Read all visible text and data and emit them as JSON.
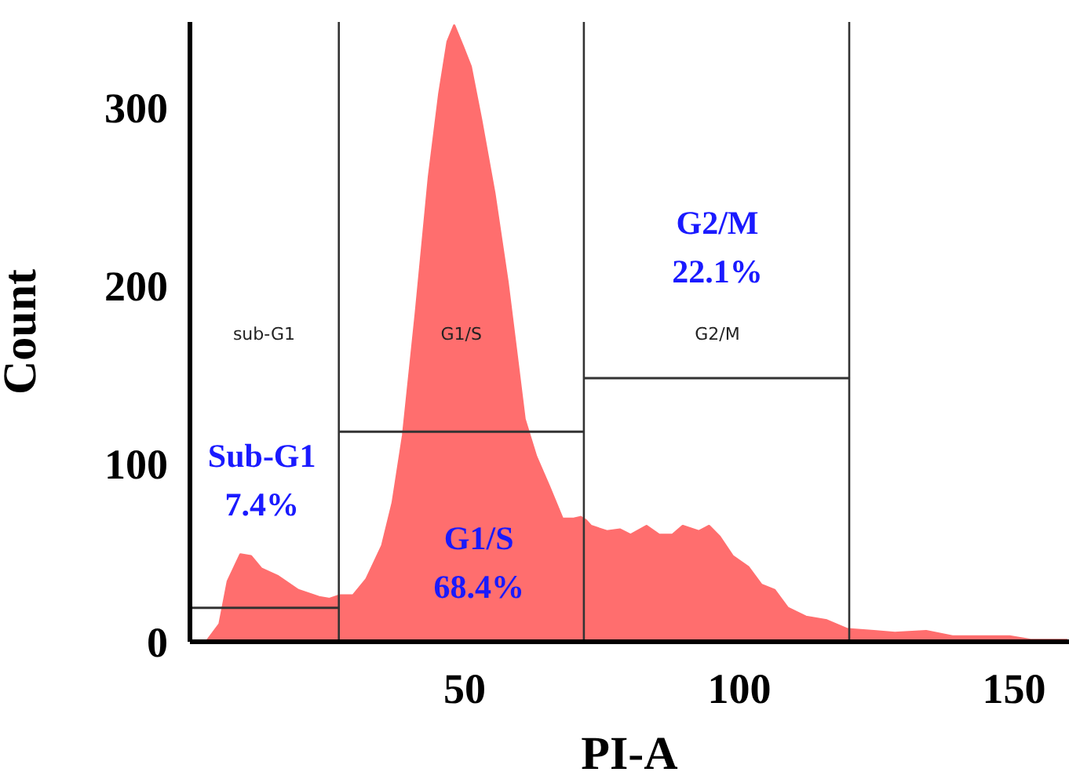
{
  "chart_data": {
    "type": "area",
    "xlabel": "PI-A",
    "ylabel": "Count",
    "xlim": [
      0,
      160
    ],
    "xticks": [
      50,
      100,
      150
    ],
    "ylim": [
      0,
      348
    ],
    "yticks": [
      0,
      100,
      200,
      300
    ],
    "series": [
      {
        "color": "#ff6e6e",
        "x": [
          2.5,
          3,
          5.4,
          6.9,
          9.2,
          11.1,
          13.0,
          15.9,
          19.7,
          23.5,
          25.4,
          27.3,
          29.7,
          32.1,
          35,
          36.9,
          38.8,
          41.1,
          43.5,
          45.4,
          46.9,
          48.1,
          49.7,
          51.1,
          53.0,
          55.4,
          57.8,
          59.7,
          60.9,
          63.0,
          65.4,
          67.8,
          69.7,
          71.1,
          72.1,
          73.0,
          75.9,
          78.3,
          80.2,
          83.1,
          85.4,
          87.8,
          89.7,
          92.6,
          94.5,
          96.4,
          98.8,
          101.6,
          104,
          106.4,
          108.8,
          112.1,
          115.9,
          119.7,
          124.5,
          128.3,
          134,
          138.8,
          144.5,
          149.2,
          153,
          159.7
        ],
        "values": [
          0,
          0,
          10,
          34,
          49,
          48,
          41,
          37,
          29,
          25,
          24,
          26,
          26,
          35,
          54,
          78,
          116,
          184,
          261,
          308,
          337,
          346,
          334,
          323,
          293,
          252,
          202,
          155,
          125,
          104,
          87,
          69,
          69,
          70,
          68,
          65,
          62,
          63,
          60,
          65,
          60,
          60,
          65,
          62,
          65,
          59,
          48,
          42,
          32,
          29,
          19,
          14,
          12,
          7,
          6,
          5,
          6,
          3,
          3,
          3,
          1,
          1
        ]
      },
      {
        "type": "line",
        "color": "#333333",
        "x": [
          0,
          27.1
        ],
        "values": [
          19,
          19
        ]
      },
      {
        "type": "line",
        "color": "#333333",
        "x": [
          27.1,
          71.7
        ],
        "values": [
          118,
          118
        ]
      },
      {
        "type": "line",
        "color": "#333333",
        "x": [
          71.7,
          120
        ],
        "values": [
          148,
          148
        ]
      }
    ],
    "ref_lines": [
      {
        "axis": "x",
        "value": 27.1,
        "color": "#333333"
      },
      {
        "axis": "x",
        "value": 71.7,
        "color": "#333333"
      },
      {
        "axis": "x",
        "value": 120,
        "color": "#333333"
      }
    ],
    "annotations": [
      "sub-G1",
      "G1/S",
      "G2/M",
      "Sub-G1\n7.4%",
      "G1/S\n68.4%",
      "G2/M\n22.1%"
    ]
  }
}
